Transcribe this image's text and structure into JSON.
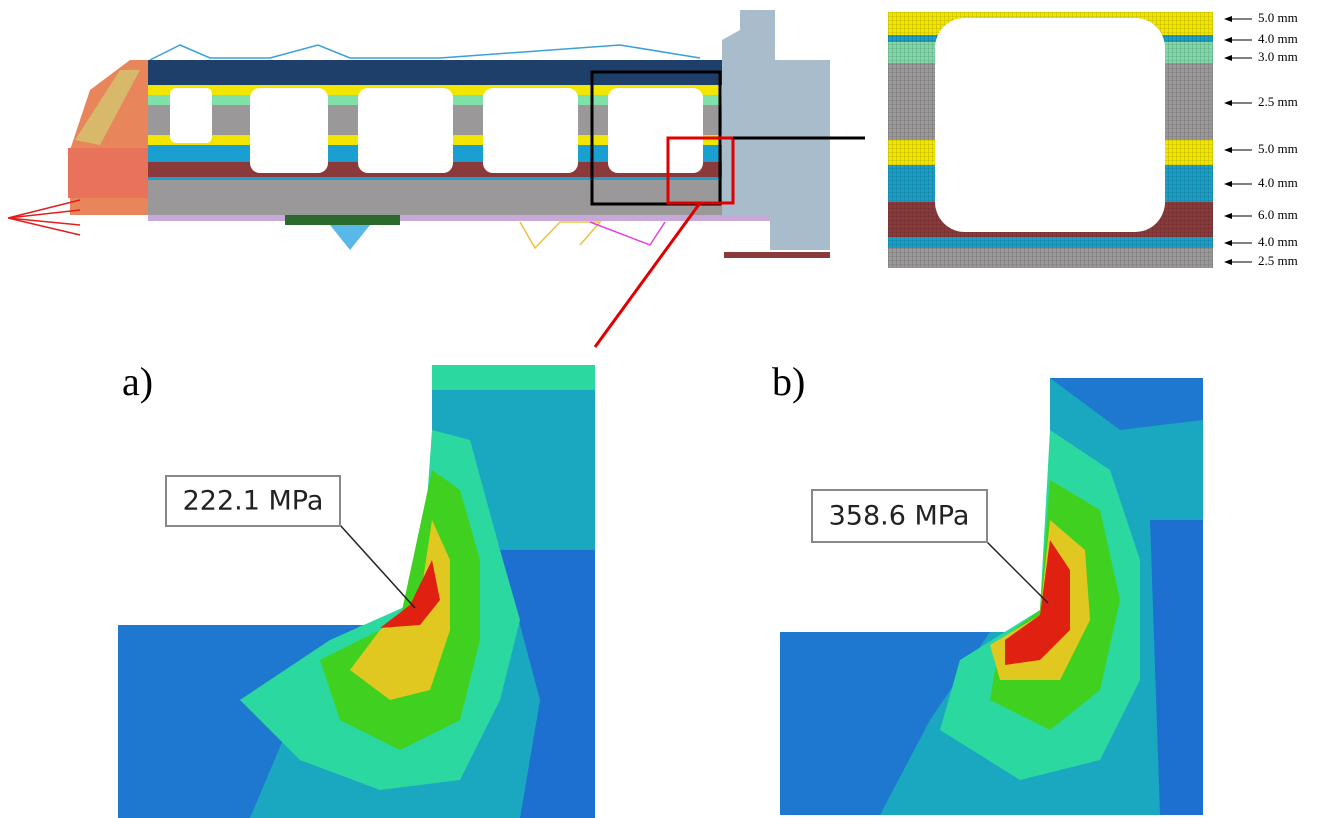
{
  "mesh_detail": {
    "thickness_labels": [
      "5.0 mm",
      "4.0 mm",
      "3.0 mm",
      "2.5 mm",
      "5.0 mm",
      "4.0 mm",
      "6.0 mm",
      "4.0 mm",
      "2.5 mm"
    ]
  },
  "panels": [
    {
      "label": "a)",
      "stress_label": "222.1 MPa"
    },
    {
      "label": "b)",
      "stress_label": "358.6 MPa"
    }
  ]
}
